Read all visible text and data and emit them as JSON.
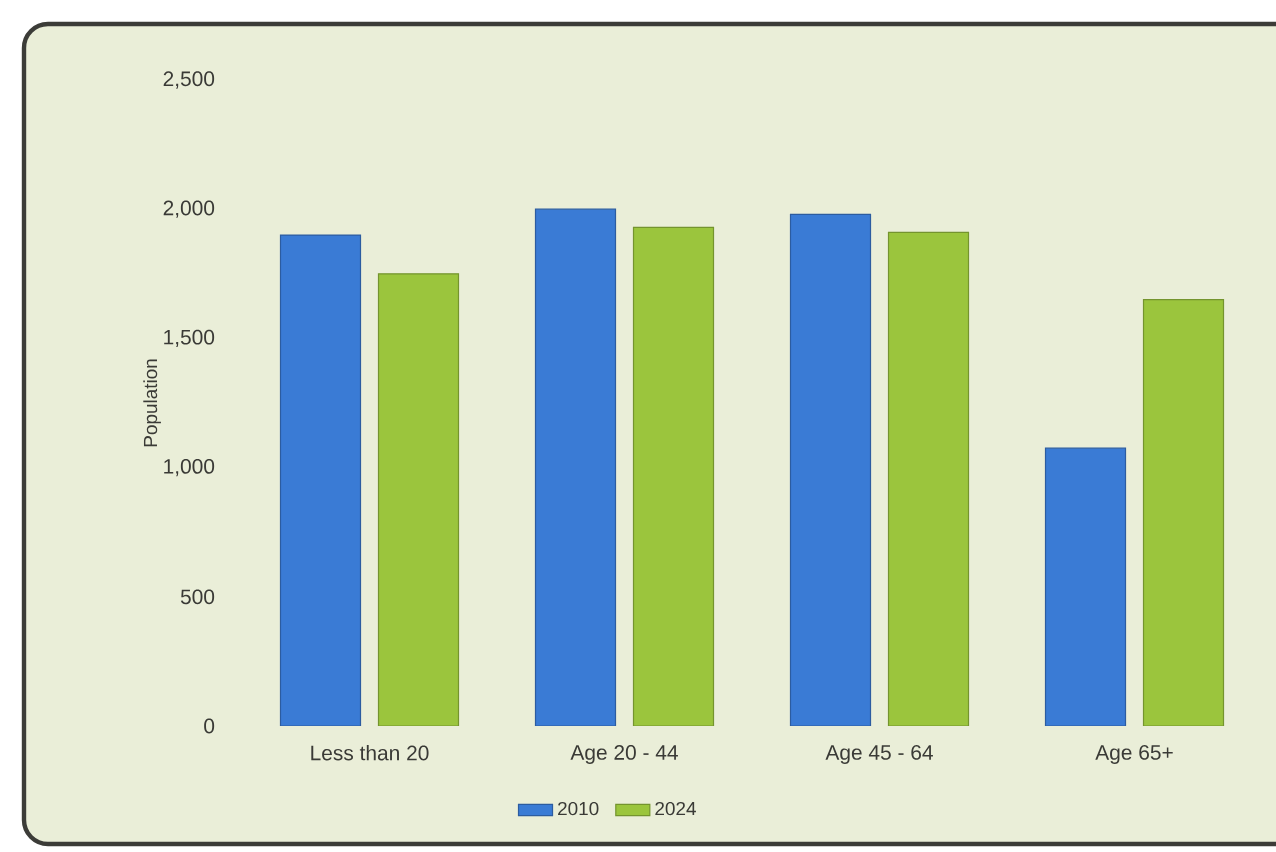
{
  "chart_data": {
    "type": "bar",
    "categories": [
      "Less than 20",
      "Age 20 - 44",
      "Age 45 - 64",
      "Age 65+"
    ],
    "series": [
      {
        "name": "2010",
        "color": "#3a7bd5",
        "values": [
          1900,
          2000,
          1980,
          1075
        ]
      },
      {
        "name": "2024",
        "color": "#9bc53d",
        "values": [
          1750,
          1930,
          1910,
          1650
        ]
      }
    ],
    "ylabel": "Population",
    "ylim": [
      0,
      2500
    ],
    "yticks": [
      0,
      500,
      {
        "value": 1000,
        "label": "1,000"
      },
      {
        "value": 1500,
        "label": "1,500"
      },
      {
        "value": 2000,
        "label": "2,000"
      },
      {
        "value": 2500,
        "label": "2,500"
      }
    ],
    "legend": "bottom",
    "grid": false
  }
}
